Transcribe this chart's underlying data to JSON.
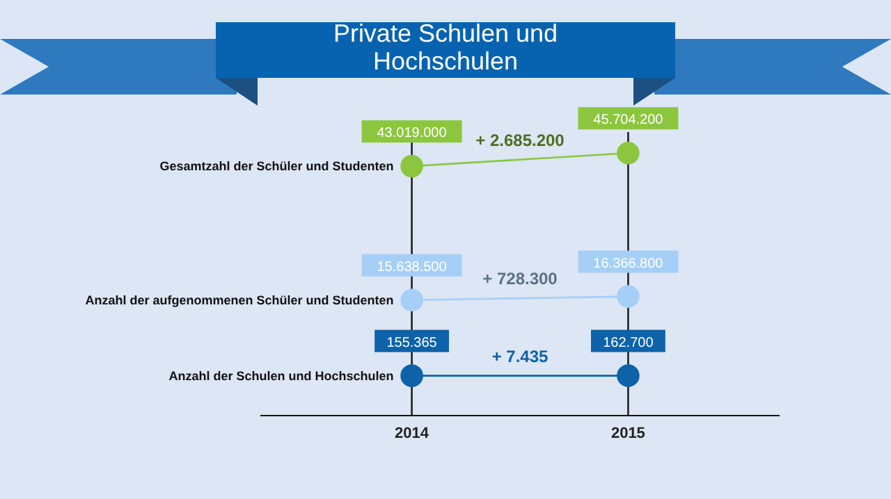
{
  "chart_data": {
    "type": "line",
    "title": "Private Schulen und Hochschulen",
    "categories": [
      "2014",
      "2015"
    ],
    "series": [
      {
        "name": "Gesamtzahl der Schüler und Studenten",
        "color": "#8cc63f",
        "values": [
          43019000,
          45704200
        ],
        "value_labels": [
          "43.019.000",
          "45.704.200"
        ]
      },
      {
        "name": "Anzahl der aufgenommenen Schüler und Studenten",
        "color": "#a6cff7",
        "values": [
          15638500,
          16366800
        ],
        "value_labels": [
          "15.638.500",
          "16.366.800"
        ]
      },
      {
        "name": "Anzahl der Schulen und Hochschulen",
        "color": "#0d62a8",
        "values": [
          155365,
          162700
        ],
        "value_labels": [
          "155.365",
          "162.700"
        ]
      }
    ],
    "annotations": [
      "+ 2.685.200",
      "+ 728.300",
      "+ 7.435"
    ],
    "ylim": [
      -8000000,
      50000000
    ],
    "tick_labels": "x",
    "grid": "x",
    "legend": false,
    "marker": "circle",
    "line_style": "solid"
  }
}
